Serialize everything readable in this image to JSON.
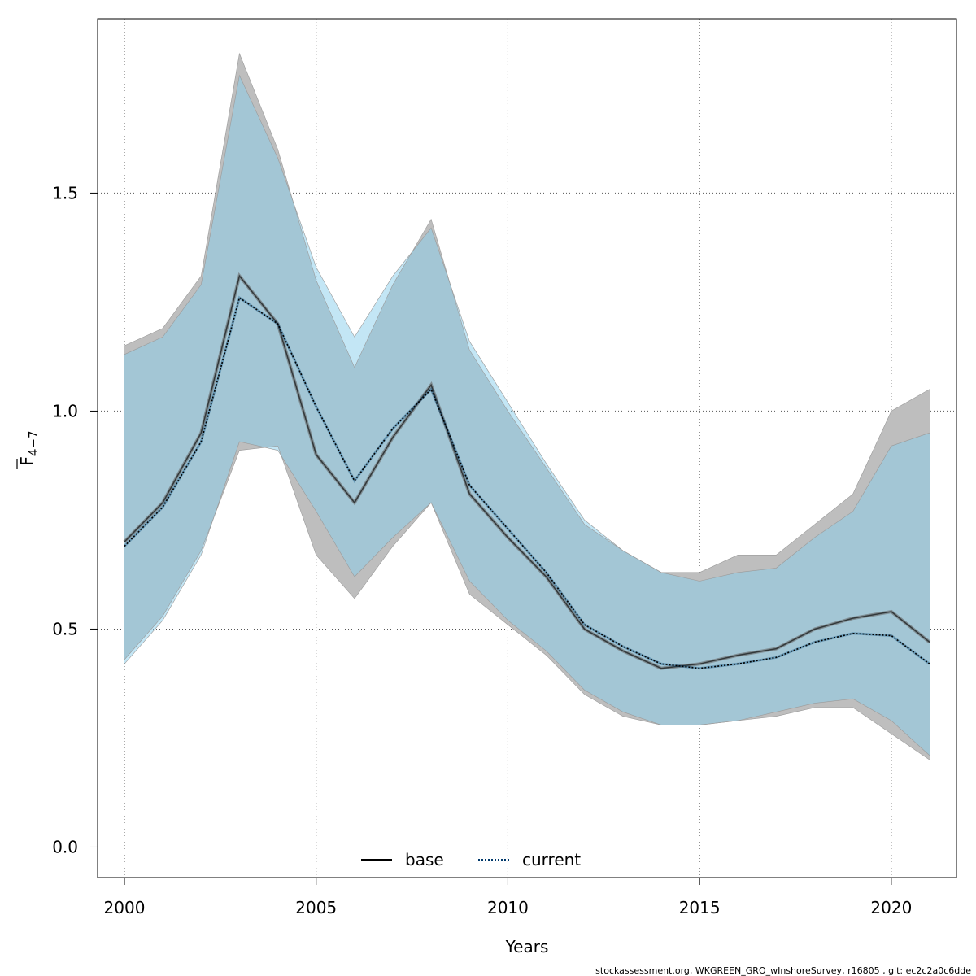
{
  "chart_data": {
    "type": "line",
    "title": "",
    "xlabel": "Years",
    "ylabel_base": "F",
    "ylabel_subscript": "4−7",
    "xlim": [
      1999.3,
      2021.7
    ],
    "ylim": [
      -0.07,
      1.9
    ],
    "x_ticks": [
      2000,
      2005,
      2010,
      2015,
      2020
    ],
    "y_ticks": [
      0.0,
      0.5,
      1.0,
      1.5
    ],
    "y_tick_labels": [
      "0.0",
      "0.5",
      "1.0",
      "1.5"
    ],
    "grid": true,
    "legend_position": "bottom-center",
    "x": [
      2000,
      2001,
      2002,
      2003,
      2004,
      2005,
      2006,
      2007,
      2008,
      2009,
      2010,
      2011,
      2012,
      2013,
      2014,
      2015,
      2016,
      2017,
      2018,
      2019,
      2020,
      2021
    ],
    "series": [
      {
        "name": "base",
        "line_style": "solid",
        "line_color": "#000000",
        "band_color": "#bebebe",
        "values": [
          0.7,
          0.79,
          0.95,
          1.31,
          1.2,
          0.9,
          0.79,
          0.94,
          1.06,
          0.81,
          0.71,
          0.62,
          0.5,
          0.45,
          0.41,
          0.42,
          0.44,
          0.455,
          0.5,
          0.525,
          0.54,
          0.47
        ],
        "lower": [
          0.43,
          0.53,
          0.68,
          0.91,
          0.92,
          0.67,
          0.57,
          0.69,
          0.79,
          0.58,
          0.51,
          0.44,
          0.35,
          0.3,
          0.28,
          0.28,
          0.29,
          0.3,
          0.32,
          0.32,
          0.26,
          0.2
        ],
        "upper": [
          1.15,
          1.19,
          1.31,
          1.82,
          1.6,
          1.3,
          1.1,
          1.29,
          1.44,
          1.14,
          1.0,
          0.87,
          0.74,
          0.68,
          0.63,
          0.63,
          0.67,
          0.67,
          0.74,
          0.81,
          1.0,
          1.05
        ]
      },
      {
        "name": "current",
        "line_style": "dotted",
        "line_color": "#000000",
        "band_color": "#87ceeb",
        "values": [
          0.69,
          0.78,
          0.93,
          1.26,
          1.2,
          1.01,
          0.84,
          0.96,
          1.05,
          0.83,
          0.73,
          0.63,
          0.51,
          0.46,
          0.42,
          0.41,
          0.42,
          0.435,
          0.47,
          0.49,
          0.485,
          0.42
        ],
        "lower": [
          0.42,
          0.52,
          0.67,
          0.93,
          0.91,
          0.77,
          0.62,
          0.71,
          0.79,
          0.61,
          0.52,
          0.45,
          0.36,
          0.31,
          0.28,
          0.28,
          0.29,
          0.31,
          0.33,
          0.34,
          0.29,
          0.21
        ],
        "upper": [
          1.13,
          1.17,
          1.29,
          1.77,
          1.58,
          1.33,
          1.17,
          1.31,
          1.42,
          1.16,
          1.02,
          0.88,
          0.75,
          0.68,
          0.63,
          0.61,
          0.63,
          0.64,
          0.71,
          0.77,
          0.92,
          0.95
        ]
      }
    ]
  },
  "footer": "stockassessment.org, WKGREEN_GRO_wInshoreSurvey, r16805 , git: ec2c2a0c6dde"
}
